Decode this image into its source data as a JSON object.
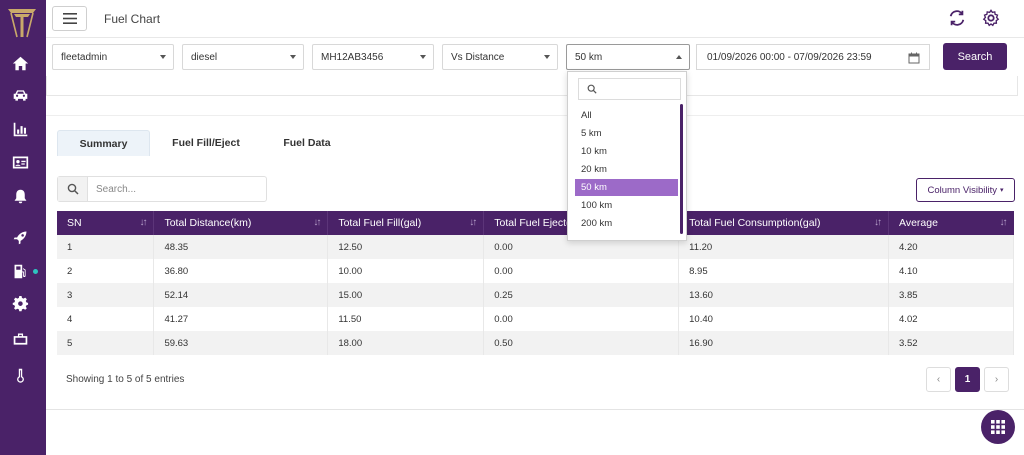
{
  "app": {
    "title": "Fuel Chart"
  },
  "filters": {
    "user": "fleetadmin",
    "fuel_type": "diesel",
    "vehicle": "MH12AB3456",
    "mode": "Vs Distance",
    "distance": "50 km",
    "date_range": "01/09/2026 00:00 - 07/09/2026 23:59",
    "search_label": "Search"
  },
  "distance_dropdown": {
    "options": [
      "All",
      "5 km",
      "10 km",
      "20 km",
      "50 km",
      "100 km",
      "200 km"
    ],
    "selected": "50 km"
  },
  "tabs": [
    "Summary",
    "Fuel Fill/Eject",
    "Fuel Data"
  ],
  "active_tab": "Summary",
  "table_search": {
    "placeholder": "Search..."
  },
  "column_visibility_label": "Column Visibility",
  "table": {
    "columns": [
      "SN",
      "Total Distance(km)",
      "Total Fuel Fill(gal)",
      "Total Fuel Eject(gal)",
      "Total Fuel Consumption(gal)",
      "Average"
    ],
    "rows": [
      [
        "1",
        "48.35",
        "12.50",
        "0.00",
        "11.20",
        "4.20"
      ],
      [
        "2",
        "36.80",
        "10.00",
        "0.00",
        "8.95",
        "4.10"
      ],
      [
        "3",
        "52.14",
        "15.00",
        "0.25",
        "13.60",
        "3.85"
      ],
      [
        "4",
        "41.27",
        "11.50",
        "0.00",
        "10.40",
        "4.02"
      ],
      [
        "5",
        "59.63",
        "18.00",
        "0.50",
        "16.90",
        "3.52"
      ]
    ]
  },
  "pagination": {
    "showing": "Showing 1 to 5 of 5 entries",
    "current_page": "1",
    "prev": "‹",
    "next": "›"
  },
  "sidebar": {
    "icons": [
      "home-icon",
      "car-icon",
      "bar-chart-icon",
      "id-card-icon",
      "bell-icon",
      "rocket-icon",
      "fuel-pump-icon",
      "gear-icon",
      "briefcase-icon",
      "thermometer-icon"
    ]
  },
  "colors": {
    "primary": "#4a2268",
    "selected_option": "#9c6ac8",
    "status_dot": "#2ec4c0"
  }
}
